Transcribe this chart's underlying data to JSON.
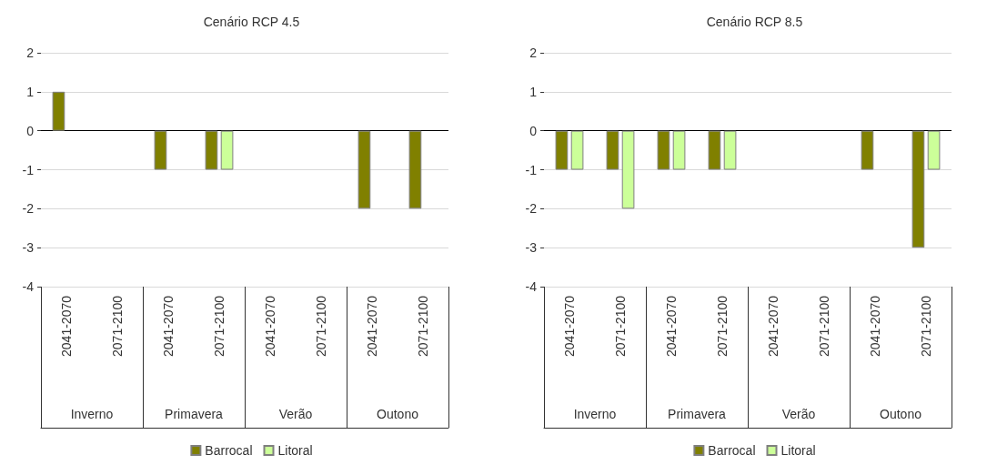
{
  "chart_data": [
    {
      "type": "bar",
      "title": "Cenário RCP 4.5",
      "categories": [
        "2041-2070",
        "2071-2100",
        "2041-2070",
        "2071-2100",
        "2041-2070",
        "2071-2100",
        "2041-2070",
        "2071-2100"
      ],
      "annotations": [
        "Inverno",
        "Primavera",
        "Verão",
        "Outono"
      ],
      "series": [
        {
          "name": "Barrocal",
          "color": "#808000",
          "values": [
            1,
            0,
            -1,
            -1,
            0,
            0,
            -2,
            -2
          ]
        },
        {
          "name": "Litoral",
          "color": "#ccff99",
          "values": [
            0,
            0,
            0,
            -1,
            0,
            0,
            0,
            0
          ]
        }
      ],
      "ylim": [
        -4,
        2
      ],
      "yticks": [
        -4,
        -3,
        -2,
        -1,
        0,
        1,
        2
      ],
      "grid": "y",
      "legend": "bottom"
    },
    {
      "type": "bar",
      "title": "Cenário RCP 8.5",
      "categories": [
        "2041-2070",
        "2071-2100",
        "2041-2070",
        "2071-2100",
        "2041-2070",
        "2071-2100",
        "2041-2070",
        "2071-2100"
      ],
      "annotations": [
        "Inverno",
        "Primavera",
        "Verão",
        "Outono"
      ],
      "series": [
        {
          "name": "Barrocal",
          "color": "#808000",
          "values": [
            -1,
            -1,
            -1,
            -1,
            0,
            0,
            -1,
            -3
          ]
        },
        {
          "name": "Litoral",
          "color": "#ccff99",
          "values": [
            -1,
            -2,
            -1,
            -1,
            0,
            0,
            0,
            -1
          ]
        }
      ],
      "ylim": [
        -4,
        2
      ],
      "yticks": [
        -4,
        -3,
        -2,
        -1,
        0,
        1,
        2
      ],
      "grid": "y",
      "legend": "bottom"
    }
  ]
}
